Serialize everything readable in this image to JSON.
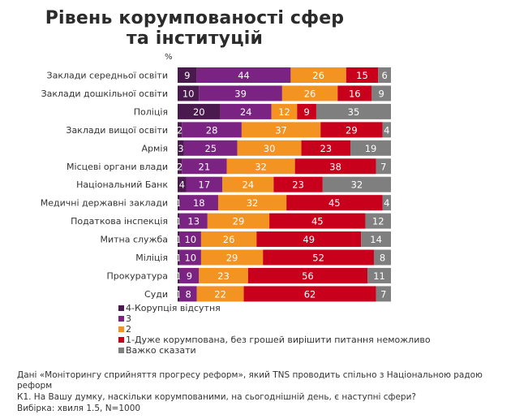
{
  "chart_data": {
    "type": "bar",
    "orientation": "horizontal",
    "stacked": true,
    "title": "Рівень корумпованості  сфер та інституцій",
    "unit_label": "%",
    "xlabel": "",
    "ylabel": "",
    "xlim": [
      0,
      100
    ],
    "grid": false,
    "legend_position": "bottom-left",
    "categories": [
      "Заклади середньої освіти",
      "Заклади дошкільної освіти",
      "Поліція",
      "Заклади вищої освіти",
      "Армія",
      "Місцеві органи влади",
      "Національний Банк",
      "Медичні державні заклади",
      "Податкова інспекція",
      "Митна служба",
      "Міліція",
      "Прокуратура",
      "Суди"
    ],
    "series": [
      {
        "name": "4-Корупція відсутня",
        "color": "#4a1a4e",
        "values": [
          9,
          10,
          20,
          2,
          3,
          2,
          4,
          1,
          1,
          1,
          1,
          1,
          1
        ]
      },
      {
        "name": "3",
        "color": "#7b2382",
        "values": [
          44,
          39,
          24,
          28,
          25,
          21,
          17,
          18,
          13,
          10,
          10,
          9,
          8
        ]
      },
      {
        "name": "2",
        "color": "#f39322",
        "values": [
          26,
          26,
          12,
          37,
          30,
          32,
          24,
          32,
          29,
          26,
          29,
          23,
          22
        ]
      },
      {
        "name": "1-Дуже корумпована, без грошей вирішити питання неможливо",
        "color": "#c8001c",
        "values": [
          15,
          16,
          9,
          29,
          23,
          38,
          23,
          45,
          45,
          49,
          52,
          56,
          62
        ]
      },
      {
        "name": "Важко сказати",
        "color": "#7f7f7f",
        "values": [
          6,
          9,
          35,
          4,
          19,
          7,
          32,
          4,
          12,
          14,
          8,
          11,
          7
        ]
      }
    ]
  },
  "notes": {
    "source": "Дані «Моніторингу сприйняття прогресу реформ», який TNS проводить спільно з Національною радою реформ",
    "question": "К1. На Вашу думку, наскільки корумпованими, на сьогоднішній день, є наступні сфери?",
    "sample": "Вибірка: хвиля 1.5, N=1000"
  }
}
